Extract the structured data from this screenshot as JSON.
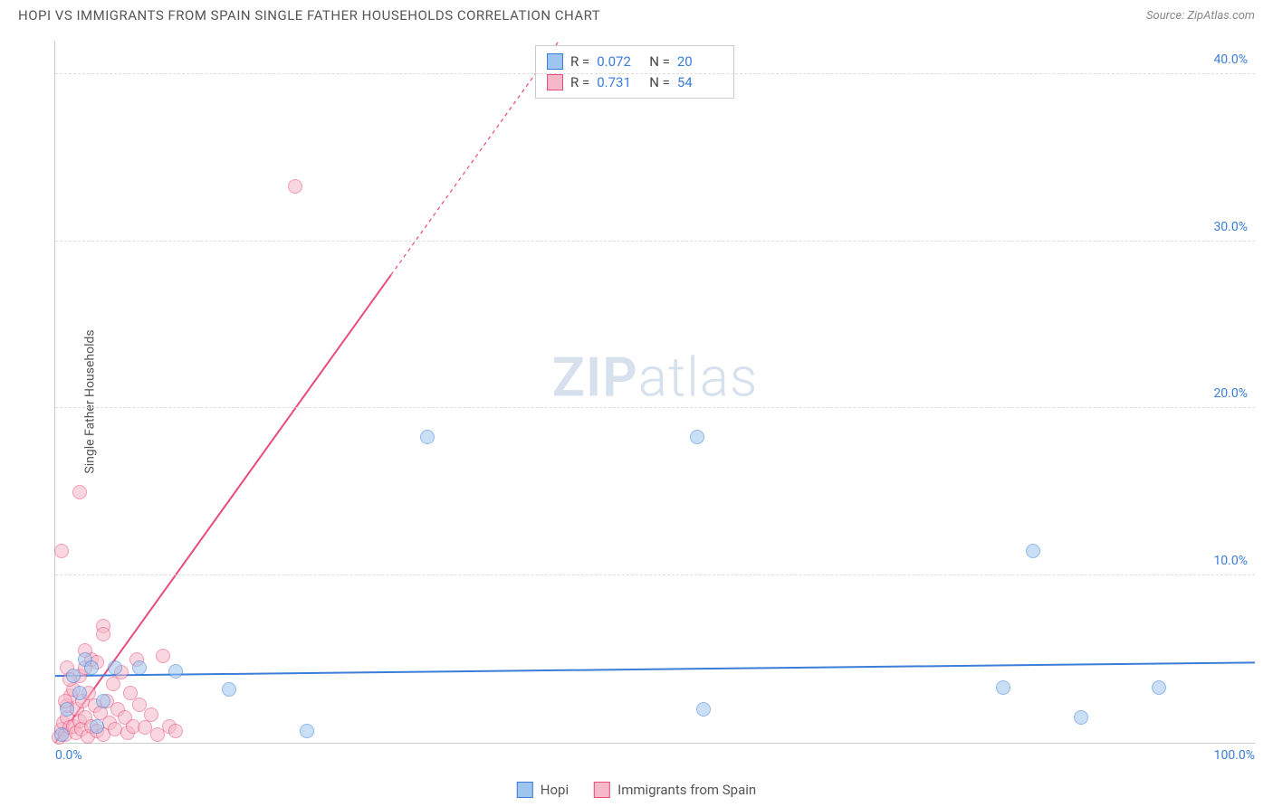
{
  "title": "HOPI VS IMMIGRANTS FROM SPAIN SINGLE FATHER HOUSEHOLDS CORRELATION CHART",
  "source": "Source: ZipAtlas.com",
  "watermark_a": "ZIP",
  "watermark_b": "atlas",
  "chart": {
    "type": "scatter",
    "ylabel": "Single Father Households",
    "xlim": [
      0,
      100
    ],
    "ylim": [
      0,
      42
    ],
    "xtick_min_label": "0.0%",
    "xtick_max_label": "100.0%",
    "yticks": [
      10,
      20,
      30,
      40
    ],
    "ytick_labels": [
      "10.0%",
      "20.0%",
      "30.0%",
      "40.0%"
    ],
    "xtick_color": "#3b7dd8",
    "ytick_color": "#3b7dd8",
    "grid_color": "#dddddd",
    "axis_color": "#cccccc",
    "background": "#ffffff",
    "label_fontsize": 14,
    "title_fontsize": 15,
    "point_radius": 8,
    "series": [
      {
        "name": "Hopi",
        "fill": "#9ec5f0",
        "stroke": "#3b7dd8",
        "fill_opacity": 0.55,
        "R": "0.072",
        "N": "20",
        "trend": {
          "x1": 0,
          "y1": 4.0,
          "x2": 100,
          "y2": 4.8,
          "width": 2
        },
        "points": [
          [
            0.5,
            0.5
          ],
          [
            1.0,
            2.0
          ],
          [
            1.5,
            4.0
          ],
          [
            2.0,
            3.0
          ],
          [
            2.5,
            5.0
          ],
          [
            3.0,
            4.5
          ],
          [
            4.0,
            2.5
          ],
          [
            5.0,
            4.5
          ],
          [
            7.0,
            4.5
          ],
          [
            10.0,
            4.3
          ],
          [
            14.5,
            3.2
          ],
          [
            21.0,
            0.7
          ],
          [
            31.0,
            18.3
          ],
          [
            54.0,
            2.0
          ],
          [
            79.0,
            3.3
          ],
          [
            81.5,
            11.5
          ],
          [
            85.5,
            1.5
          ],
          [
            92.0,
            3.3
          ],
          [
            53.5,
            18.3
          ],
          [
            3.5,
            1.0
          ]
        ]
      },
      {
        "name": "Immigrants from Spain",
        "fill": "#f5b8c8",
        "stroke": "#e94b7a",
        "fill_opacity": 0.55,
        "R": "0.731",
        "N": "54",
        "trend_solid": {
          "x1": 0,
          "y1": 0,
          "x2": 28,
          "y2": 28,
          "width": 2
        },
        "trend_dash": {
          "x1": 28,
          "y1": 28,
          "x2": 42,
          "y2": 42,
          "width": 1.2
        },
        "points": [
          [
            0.3,
            0.3
          ],
          [
            0.5,
            0.8
          ],
          [
            0.7,
            1.2
          ],
          [
            0.8,
            0.5
          ],
          [
            1.0,
            1.5
          ],
          [
            1.0,
            2.2
          ],
          [
            1.2,
            0.9
          ],
          [
            1.3,
            2.8
          ],
          [
            1.5,
            1.0
          ],
          [
            1.5,
            3.2
          ],
          [
            1.7,
            0.6
          ],
          [
            1.8,
            2.0
          ],
          [
            2.0,
            1.3
          ],
          [
            2.0,
            4.0
          ],
          [
            2.2,
            0.8
          ],
          [
            2.3,
            2.5
          ],
          [
            2.5,
            1.5
          ],
          [
            2.5,
            4.5
          ],
          [
            2.7,
            0.4
          ],
          [
            2.8,
            3.0
          ],
          [
            3.0,
            1.0
          ],
          [
            3.0,
            5.0
          ],
          [
            3.3,
            2.2
          ],
          [
            3.5,
            0.7
          ],
          [
            3.5,
            4.8
          ],
          [
            3.8,
            1.8
          ],
          [
            4.0,
            0.5
          ],
          [
            4.0,
            7.0
          ],
          [
            4.3,
            2.5
          ],
          [
            4.5,
            1.2
          ],
          [
            4.8,
            3.5
          ],
          [
            5.0,
            0.8
          ],
          [
            5.2,
            2.0
          ],
          [
            5.5,
            4.2
          ],
          [
            5.8,
            1.5
          ],
          [
            6.0,
            0.6
          ],
          [
            6.3,
            3.0
          ],
          [
            6.5,
            1.0
          ],
          [
            6.8,
            5.0
          ],
          [
            7.0,
            2.3
          ],
          [
            7.5,
            0.9
          ],
          [
            8.0,
            1.7
          ],
          [
            8.5,
            0.5
          ],
          [
            9.0,
            5.2
          ],
          [
            9.5,
            1.0
          ],
          [
            10.0,
            0.7
          ],
          [
            0.5,
            11.5
          ],
          [
            2.0,
            15.0
          ],
          [
            2.5,
            5.5
          ],
          [
            4.0,
            6.5
          ],
          [
            20.0,
            33.3
          ],
          [
            1.0,
            4.5
          ],
          [
            1.2,
            3.8
          ],
          [
            0.8,
            2.5
          ]
        ]
      }
    ],
    "legend": {
      "items": [
        {
          "label": "Hopi",
          "fill": "#9ec5f0",
          "stroke": "#3b7dd8"
        },
        {
          "label": "Immigrants from Spain",
          "fill": "#f5b8c8",
          "stroke": "#e94b7a"
        }
      ]
    },
    "stats_value_color": "#3b7dd8"
  }
}
